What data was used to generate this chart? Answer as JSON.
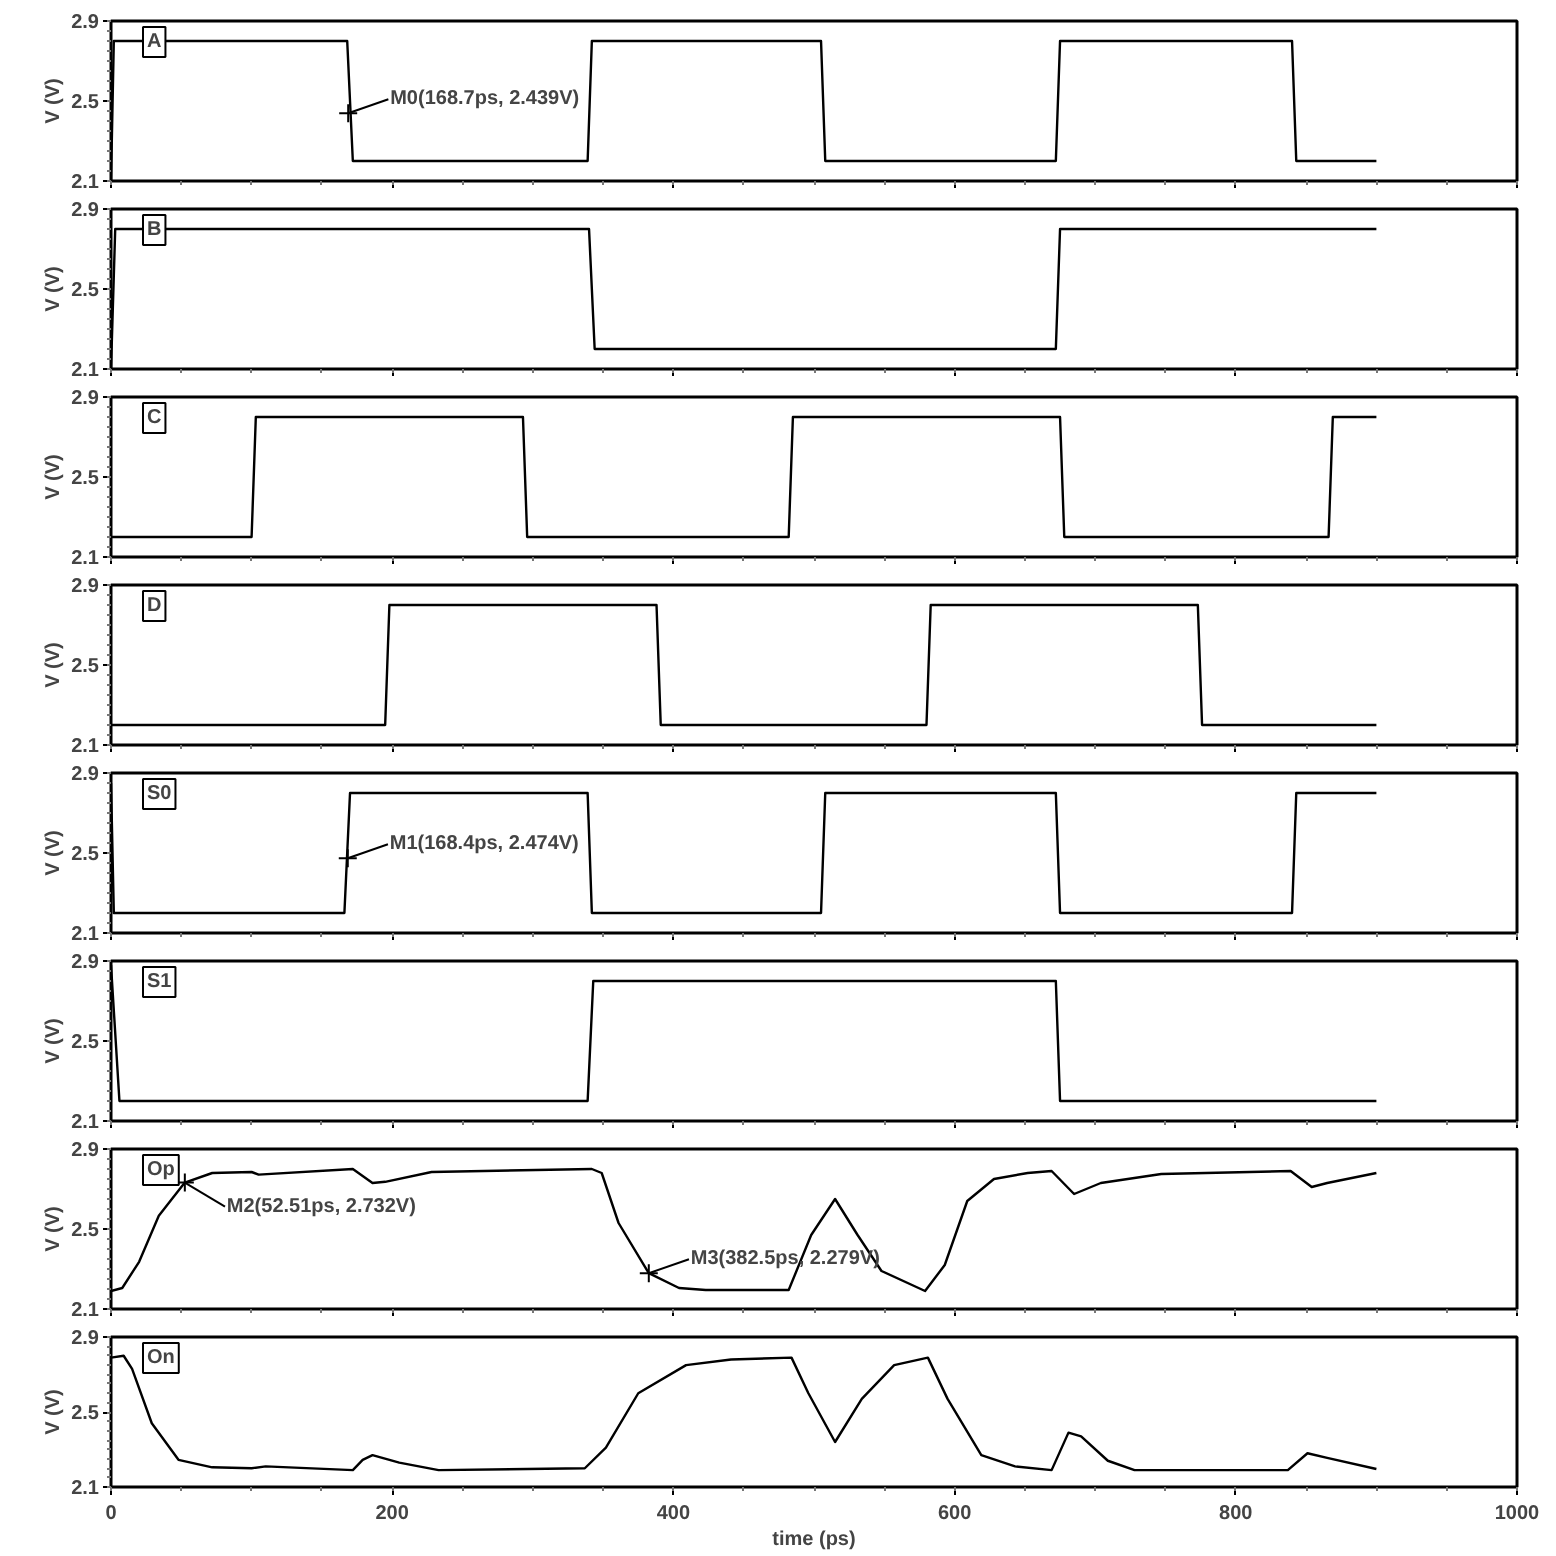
{
  "chart_data": [
    {
      "type": "line",
      "ylabel": "V (V)",
      "xlim": [
        0,
        1000
      ],
      "xticks": [
        0,
        200,
        400,
        600,
        800,
        1000
      ],
      "ylim": [
        2.1,
        2.9
      ],
      "yticks": [
        2.1,
        2.5,
        2.9
      ],
      "tick_labels": "y",
      "grid": false,
      "series": [
        {
          "name": "A",
          "color": "#000000",
          "x": [
            0,
            2,
            168,
            172,
            339,
            342,
            505,
            508,
            672,
            675,
            840,
            843,
            900
          ],
          "values": [
            2.1,
            2.8,
            2.8,
            2.2,
            2.2,
            2.8,
            2.8,
            2.2,
            2.2,
            2.8,
            2.8,
            2.2,
            2.2
          ]
        }
      ],
      "annotations": [
        {
          "text": "M0(168.7ps, 2.439V)",
          "x": 168.7,
          "y": 2.439
        }
      ]
    },
    {
      "type": "line",
      "ylabel": "V (V)",
      "xlim": [
        0,
        1000
      ],
      "xticks": [
        0,
        200,
        400,
        600,
        800,
        1000
      ],
      "ylim": [
        2.1,
        2.9
      ],
      "yticks": [
        2.1,
        2.5,
        2.9
      ],
      "tick_labels": "y",
      "grid": false,
      "series": [
        {
          "name": "B",
          "color": "#000000",
          "x": [
            0,
            3,
            340,
            344,
            672,
            675,
            900
          ],
          "values": [
            2.1,
            2.8,
            2.8,
            2.2,
            2.2,
            2.8,
            2.8
          ]
        }
      ]
    },
    {
      "type": "line",
      "ylabel": "V (V)",
      "xlim": [
        0,
        1000
      ],
      "xticks": [
        0,
        200,
        400,
        600,
        800,
        1000
      ],
      "ylim": [
        2.1,
        2.9
      ],
      "yticks": [
        2.1,
        2.5,
        2.9
      ],
      "tick_labels": "y",
      "grid": false,
      "series": [
        {
          "name": "C",
          "color": "#000000",
          "x": [
            0,
            100,
            103,
            293,
            296,
            482,
            485,
            675,
            678,
            866,
            869,
            900
          ],
          "values": [
            2.2,
            2.2,
            2.8,
            2.8,
            2.2,
            2.2,
            2.8,
            2.8,
            2.2,
            2.2,
            2.8,
            2.8
          ]
        }
      ]
    },
    {
      "type": "line",
      "ylabel": "V (V)",
      "xlim": [
        0,
        1000
      ],
      "xticks": [
        0,
        200,
        400,
        600,
        800,
        1000
      ],
      "ylim": [
        2.1,
        2.9
      ],
      "yticks": [
        2.1,
        2.5,
        2.9
      ],
      "tick_labels": "y",
      "grid": false,
      "series": [
        {
          "name": "D",
          "color": "#000000",
          "x": [
            0,
            195,
            198,
            388,
            391,
            580,
            583,
            773,
            776,
            900
          ],
          "values": [
            2.2,
            2.2,
            2.8,
            2.8,
            2.2,
            2.2,
            2.8,
            2.8,
            2.2,
            2.2
          ]
        }
      ]
    },
    {
      "type": "line",
      "ylabel": "V (V)",
      "xlim": [
        0,
        1000
      ],
      "xticks": [
        0,
        200,
        400,
        600,
        800,
        1000
      ],
      "ylim": [
        2.1,
        2.9
      ],
      "yticks": [
        2.1,
        2.5,
        2.9
      ],
      "tick_labels": "y",
      "grid": false,
      "series": [
        {
          "name": "S0",
          "color": "#000000",
          "x": [
            0,
            2,
            166,
            170,
            339,
            342,
            505,
            508,
            672,
            675,
            840,
            843,
            900
          ],
          "values": [
            2.85,
            2.2,
            2.2,
            2.8,
            2.8,
            2.2,
            2.2,
            2.8,
            2.8,
            2.2,
            2.2,
            2.8,
            2.8
          ]
        }
      ],
      "annotations": [
        {
          "text": "M1(168.4ps, 2.474V)",
          "x": 168.4,
          "y": 2.474
        }
      ]
    },
    {
      "type": "line",
      "ylabel": "V (V)",
      "xlim": [
        0,
        1000
      ],
      "xticks": [
        0,
        200,
        400,
        600,
        800,
        1000
      ],
      "ylim": [
        2.1,
        2.9
      ],
      "yticks": [
        2.1,
        2.5,
        2.9
      ],
      "tick_labels": "y",
      "grid": false,
      "series": [
        {
          "name": "S1",
          "color": "#000000",
          "x": [
            0,
            6,
            339,
            343,
            672,
            675,
            900
          ],
          "values": [
            2.88,
            2.2,
            2.2,
            2.8,
            2.8,
            2.2,
            2.2
          ]
        }
      ]
    },
    {
      "type": "line",
      "ylabel": "V (V)",
      "xlim": [
        0,
        1000
      ],
      "xticks": [
        0,
        200,
        400,
        600,
        800,
        1000
      ],
      "ylim": [
        2.1,
        2.9
      ],
      "yticks": [
        2.1,
        2.5,
        2.9
      ],
      "tick_labels": "y",
      "grid": false,
      "series": [
        {
          "name": "Op",
          "color": "#000000",
          "x": [
            0,
            8,
            20,
            34,
            52.5,
            72,
            100,
            105,
            172,
            176,
            186,
            195,
            228,
            342,
            349,
            361,
            382.5,
            404,
            423,
            482,
            498,
            515,
            531,
            548,
            579,
            593,
            609,
            628,
            652,
            669,
            685,
            704,
            747,
            839,
            854,
            865,
            900
          ],
          "values": [
            2.19,
            2.205,
            2.336,
            2.566,
            2.732,
            2.78,
            2.785,
            2.772,
            2.8,
            2.78,
            2.73,
            2.736,
            2.785,
            2.8,
            2.78,
            2.53,
            2.279,
            2.205,
            2.195,
            2.195,
            2.47,
            2.65,
            2.47,
            2.29,
            2.19,
            2.32,
            2.64,
            2.75,
            2.78,
            2.79,
            2.675,
            2.73,
            2.775,
            2.79,
            2.71,
            2.73,
            2.78
          ]
        }
      ],
      "annotations": [
        {
          "text": "M2(52.51ps, 2.732V)",
          "x": 52.51,
          "y": 2.732
        },
        {
          "text": "M3(382.5ps, 2.279V)",
          "x": 382.5,
          "y": 2.279
        }
      ]
    },
    {
      "type": "line",
      "ylabel": "V (V)",
      "xlabel": "time (ps)",
      "xlim": [
        0,
        1000
      ],
      "xticks": [
        0,
        200,
        400,
        600,
        800,
        1000
      ],
      "ylim": [
        2.1,
        2.9
      ],
      "yticks": [
        2.1,
        2.5,
        2.9
      ],
      "grid": false,
      "series": [
        {
          "name": "On",
          "color": "#000000",
          "x": [
            0,
            9,
            15,
            29,
            48,
            72,
            100,
            110,
            172,
            179,
            186,
            205,
            233,
            337,
            352,
            375,
            409,
            441,
            484,
            496,
            515,
            534,
            557,
            581,
            595,
            619,
            643,
            669,
            681,
            690,
            709,
            728,
            837,
            851,
            865,
            900
          ],
          "values": [
            2.79,
            2.8,
            2.73,
            2.44,
            2.245,
            2.205,
            2.2,
            2.21,
            2.19,
            2.245,
            2.27,
            2.23,
            2.19,
            2.2,
            2.31,
            2.6,
            2.75,
            2.78,
            2.79,
            2.6,
            2.34,
            2.57,
            2.75,
            2.79,
            2.57,
            2.27,
            2.21,
            2.19,
            2.39,
            2.37,
            2.24,
            2.19,
            2.19,
            2.28,
            2.255,
            2.196
          ]
        }
      ]
    }
  ]
}
